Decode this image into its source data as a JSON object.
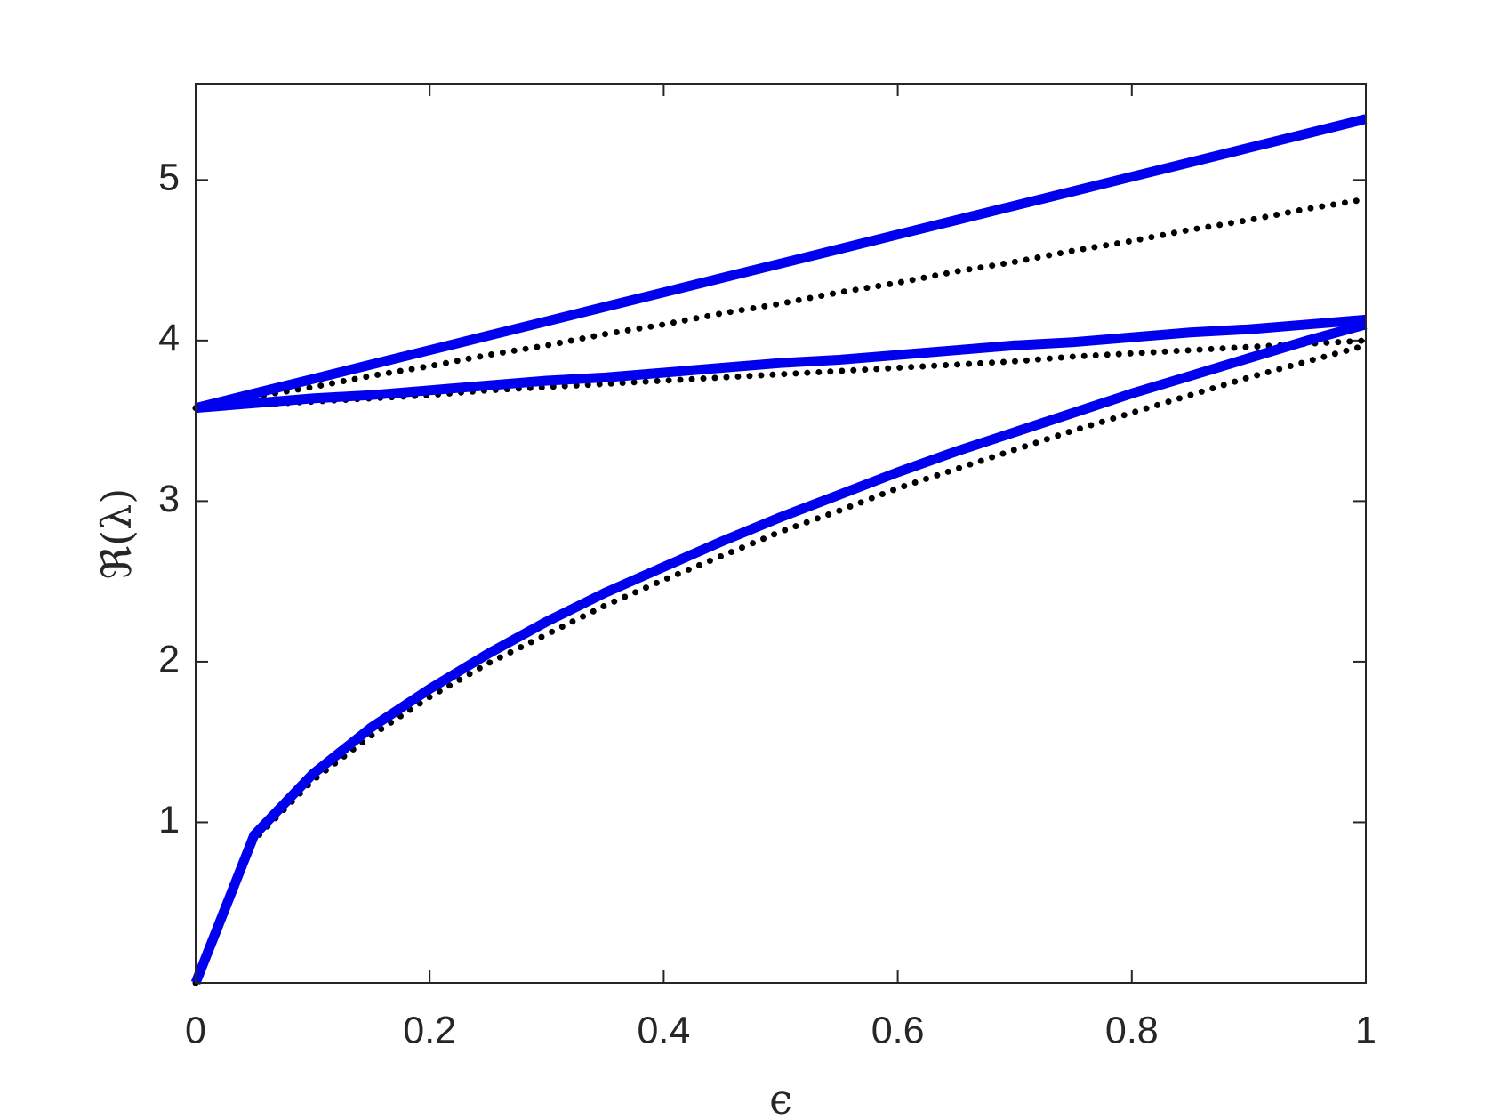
{
  "chart_data": {
    "type": "line",
    "xlabel": "ϵ",
    "ylabel": "ℜ(λ)",
    "x": [
      0,
      0.05,
      0.1,
      0.15,
      0.2,
      0.25,
      0.3,
      0.35,
      0.4,
      0.45,
      0.5,
      0.55,
      0.6,
      0.65,
      0.7,
      0.75,
      0.8,
      0.85,
      0.9,
      0.95,
      1
    ],
    "series": [
      {
        "color": "#000000",
        "style": "dotted",
        "values": [
          3.58,
          3.65,
          3.71,
          3.78,
          3.84,
          3.91,
          3.97,
          4.04,
          4.1,
          4.17,
          4.23,
          4.3,
          4.36,
          4.43,
          4.49,
          4.56,
          4.62,
          4.69,
          4.75,
          4.82,
          4.88
        ]
      },
      {
        "color": "#000000",
        "style": "dotted",
        "values": [
          3.58,
          3.6,
          3.62,
          3.64,
          3.66,
          3.69,
          3.71,
          3.73,
          3.75,
          3.77,
          3.79,
          3.81,
          3.83,
          3.85,
          3.87,
          3.9,
          3.92,
          3.94,
          3.96,
          3.98,
          4.0
        ]
      },
      {
        "color": "#000000",
        "style": "dotted",
        "values": [
          0,
          0.89,
          1.26,
          1.54,
          1.78,
          1.99,
          2.17,
          2.35,
          2.51,
          2.66,
          2.81,
          2.94,
          3.08,
          3.2,
          3.32,
          3.44,
          3.55,
          3.66,
          3.77,
          3.87,
          3.97
        ]
      },
      {
        "color": "#0000ee",
        "style": "solid",
        "values": [
          3.58,
          3.67,
          3.76,
          3.85,
          3.94,
          4.03,
          4.12,
          4.21,
          4.3,
          4.39,
          4.48,
          4.57,
          4.66,
          4.75,
          4.84,
          4.93,
          5.02,
          5.11,
          5.2,
          5.29,
          5.38
        ]
      },
      {
        "color": "#0000ee",
        "style": "solid",
        "values": [
          3.58,
          3.61,
          3.64,
          3.66,
          3.69,
          3.72,
          3.75,
          3.77,
          3.8,
          3.83,
          3.86,
          3.88,
          3.91,
          3.94,
          3.97,
          3.99,
          4.02,
          4.05,
          4.07,
          4.1,
          4.13
        ]
      },
      {
        "color": "#0000ee",
        "style": "solid",
        "values": [
          0,
          0.92,
          1.3,
          1.59,
          1.83,
          2.05,
          2.25,
          2.43,
          2.59,
          2.75,
          2.9,
          3.04,
          3.18,
          3.31,
          3.43,
          3.55,
          3.67,
          3.78,
          3.89,
          4.0,
          4.1
        ]
      }
    ],
    "xlim": [
      0,
      1
    ],
    "xticks": [
      0,
      0.2,
      0.4,
      0.6,
      0.8,
      1
    ],
    "ylim": [
      0,
      5.6
    ],
    "yticks": [
      1,
      2,
      3,
      4,
      5
    ],
    "grid": false
  }
}
